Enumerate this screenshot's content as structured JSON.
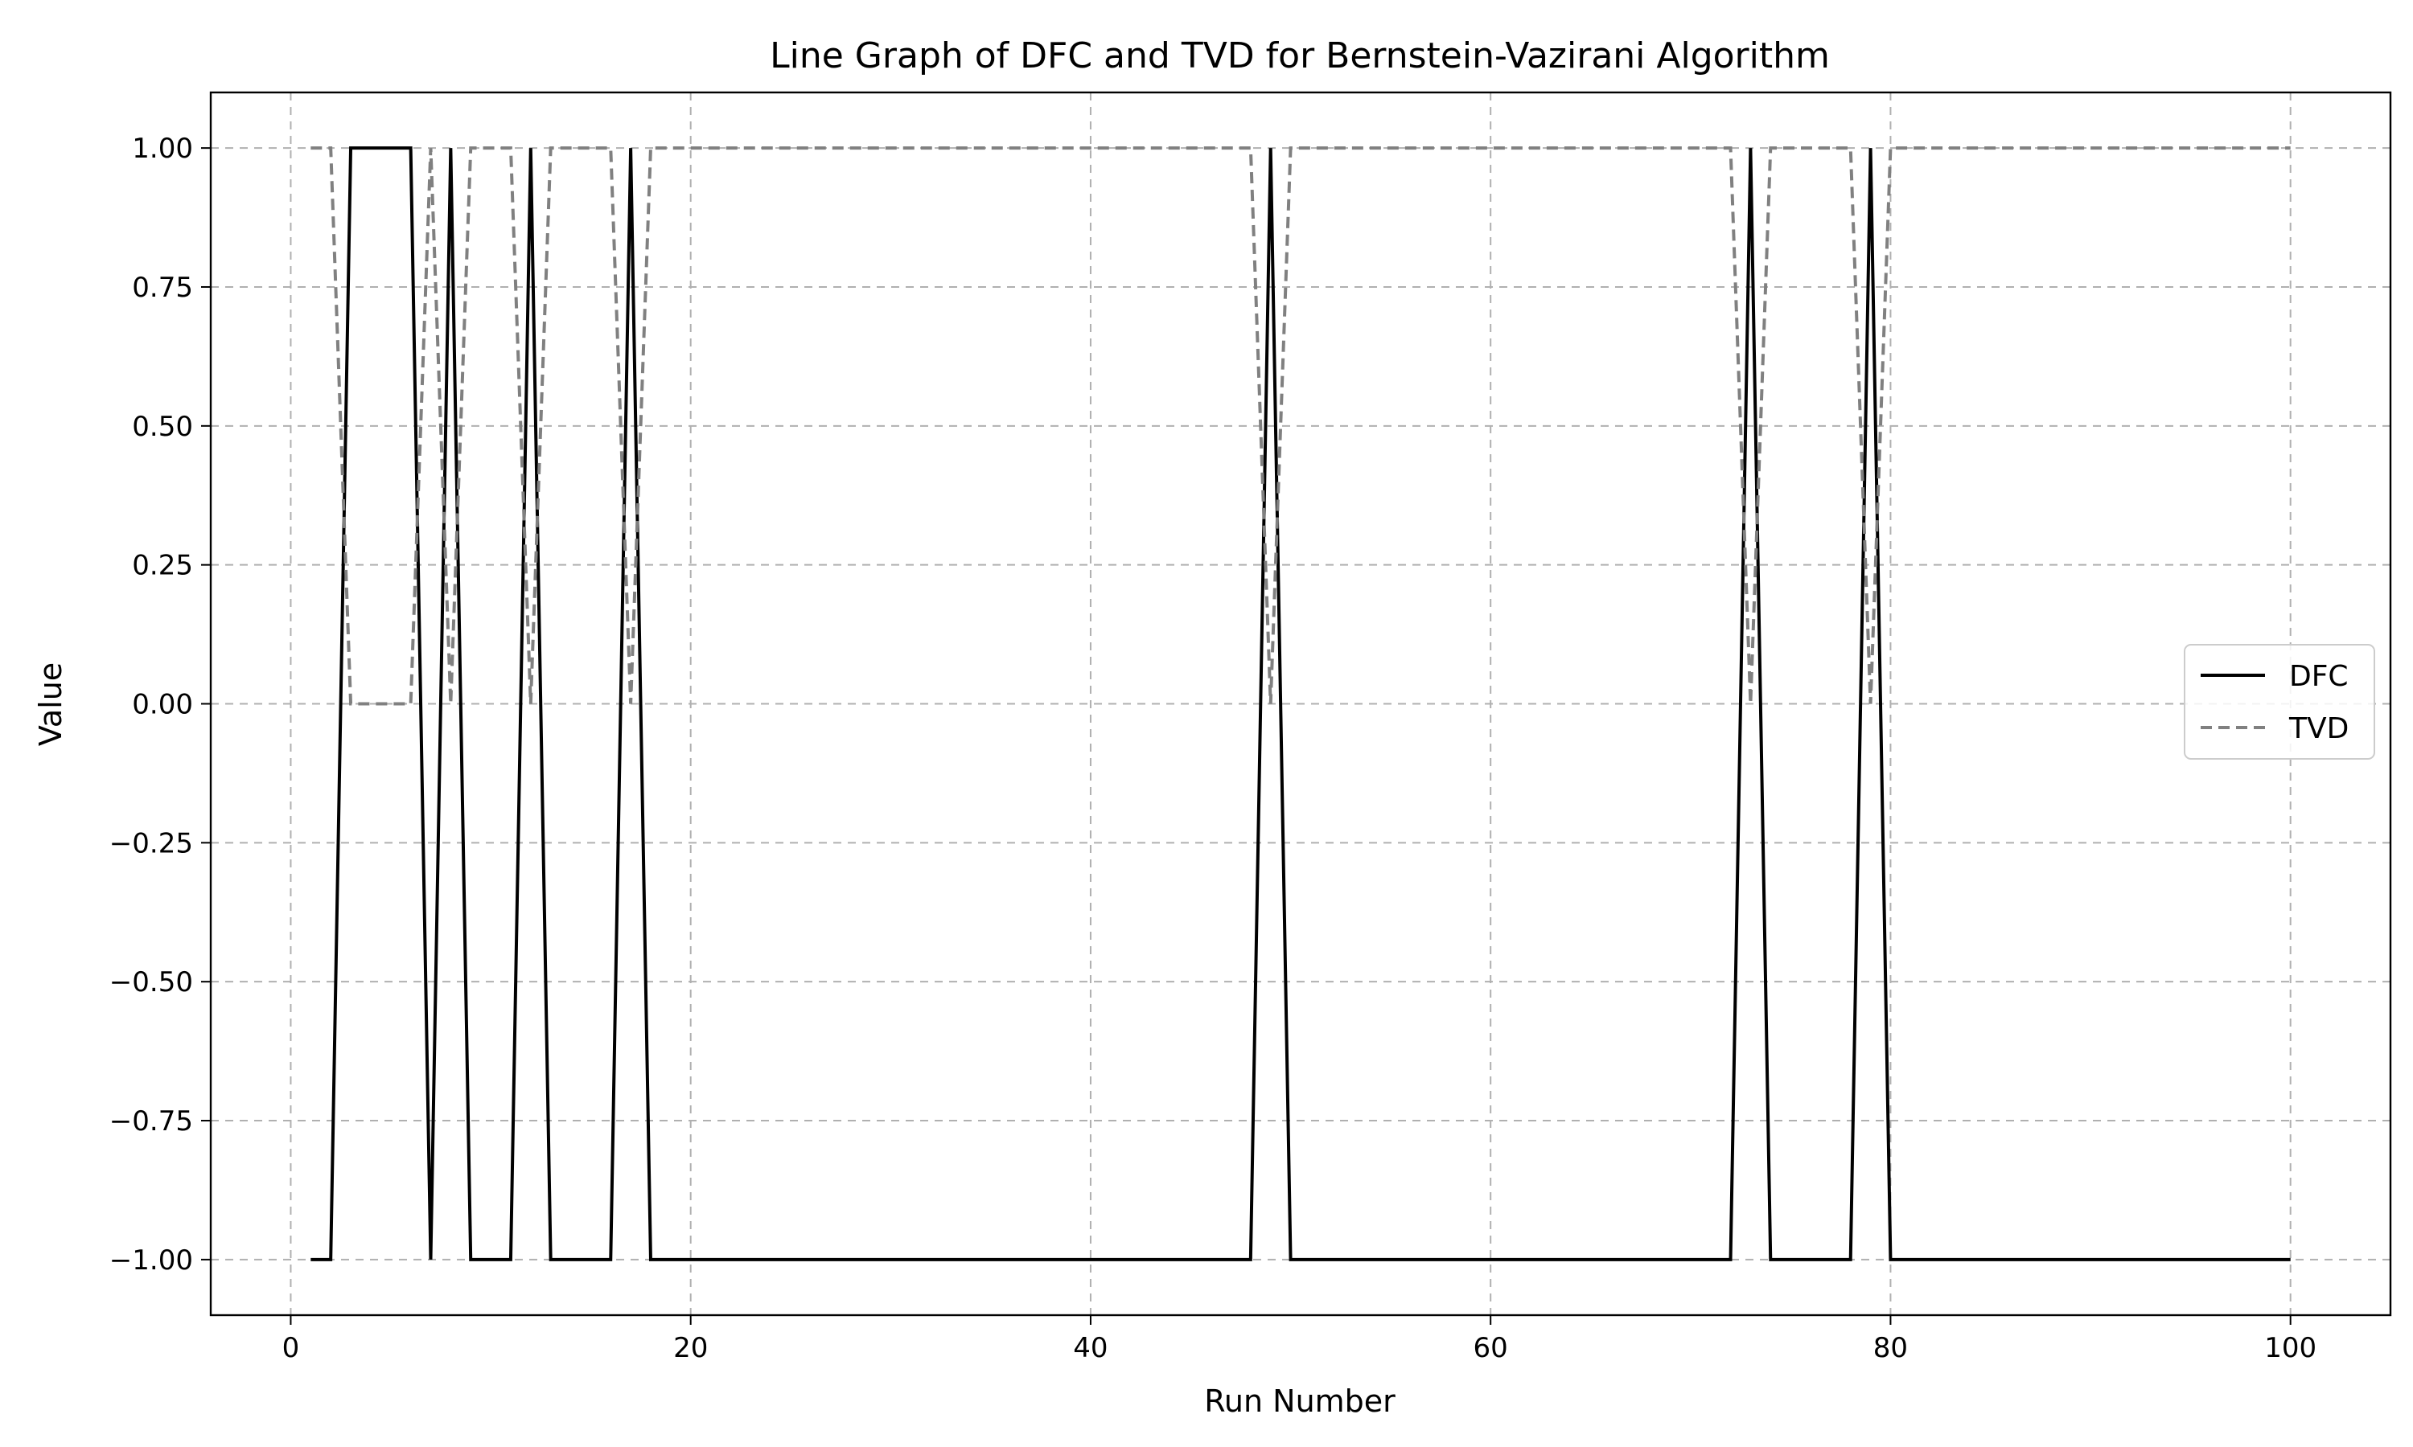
{
  "chart_data": {
    "type": "line",
    "title": "Line Graph of DFC and TVD for Bernstein-Vazirani Algorithm",
    "xlabel": "Run Number",
    "ylabel": "Value",
    "xlim": [
      -4,
      105
    ],
    "ylim": [
      -1.1,
      1.1
    ],
    "xticks": [
      0,
      20,
      40,
      60,
      80,
      100
    ],
    "xtick_labels": [
      "0",
      "20",
      "40",
      "60",
      "80",
      "100"
    ],
    "yticks": [
      -1.0,
      -0.75,
      -0.5,
      -0.25,
      0.0,
      0.25,
      0.5,
      0.75,
      1.0
    ],
    "ytick_labels": [
      "−1.00",
      "−0.75",
      "−0.50",
      "−0.25",
      "0.00",
      "0.25",
      "0.50",
      "0.75",
      "1.00"
    ],
    "grid": true,
    "legend_position": "center-right",
    "x_start": 1,
    "x_end": 100,
    "series": [
      {
        "name": "DFC",
        "color": "#000000",
        "style": "solid",
        "ones_at": [
          3,
          4,
          5,
          6,
          8,
          12,
          17,
          49,
          73,
          79
        ],
        "default_value": -1
      },
      {
        "name": "TVD",
        "color": "#808080",
        "style": "dashed",
        "zeros_at": [
          3,
          4,
          5,
          6,
          8,
          12,
          17,
          49,
          73,
          79
        ],
        "default_value": 1
      }
    ]
  }
}
